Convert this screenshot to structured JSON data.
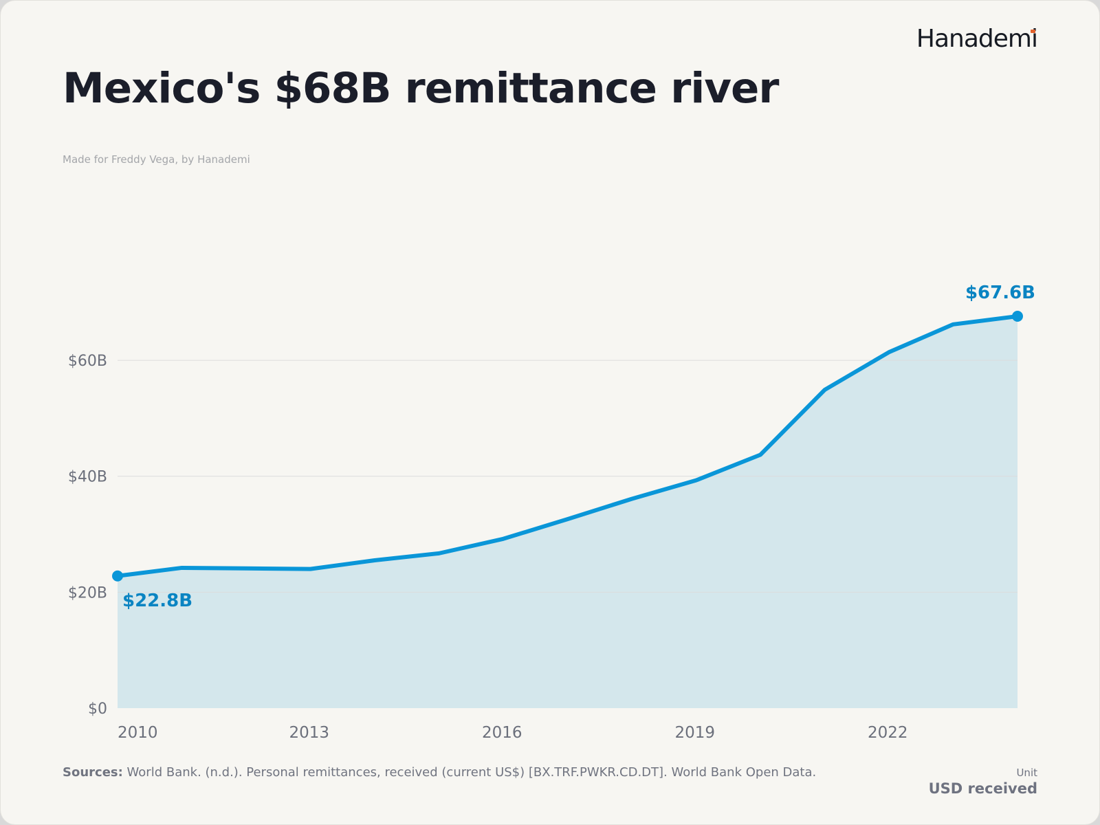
{
  "brand": {
    "logo_text": "Hanademi"
  },
  "header": {
    "title": "Mexico's $68B remittance river",
    "subtitle": "Made for Freddy Vega, by Hanademi"
  },
  "footer": {
    "sources_label": "Sources:",
    "sources_text": "World Bank. (n.d.). Personal remittances, received (current US$) [BX.TRF.PWKR.CD.DT]. World Bank Open Data.",
    "unit_label": "Unit",
    "unit_value": "USD received"
  },
  "colors": {
    "line": "#0a96d8",
    "area": "#d4e7ec",
    "annotation": "#0a84c2",
    "grid": "#dcdcdc",
    "axis_text": "#6b6f7b"
  },
  "chart_data": {
    "type": "area",
    "x": [
      2010,
      2011,
      2012,
      2013,
      2014,
      2015,
      2016,
      2017,
      2018,
      2019,
      2020,
      2021,
      2022,
      2023,
      2024
    ],
    "series": [
      {
        "values": [
          22.8,
          24.2,
          24.1,
          24.0,
          25.5,
          26.7,
          29.2,
          32.6,
          36.1,
          39.3,
          43.7,
          54.9,
          61.4,
          66.2,
          67.6
        ]
      }
    ],
    "xticks": [
      2010,
      2013,
      2016,
      2019,
      2022
    ],
    "xtick_labels": [
      "2010",
      "2013",
      "2016",
      "2019",
      "2022"
    ],
    "yticks": [
      0,
      20,
      40,
      60
    ],
    "ytick_labels": [
      "$0",
      "$20B",
      "$40B",
      "$60B"
    ],
    "xlim": [
      2010,
      2024
    ],
    "ylim": [
      0,
      67.6
    ],
    "grid": "horizontal",
    "annotations": [
      {
        "x": 2010,
        "y": 22.8,
        "text": "$22.8B",
        "position": "below-right"
      },
      {
        "x": 2024,
        "y": 67.6,
        "text": "$67.6B",
        "position": "above-left"
      }
    ]
  }
}
